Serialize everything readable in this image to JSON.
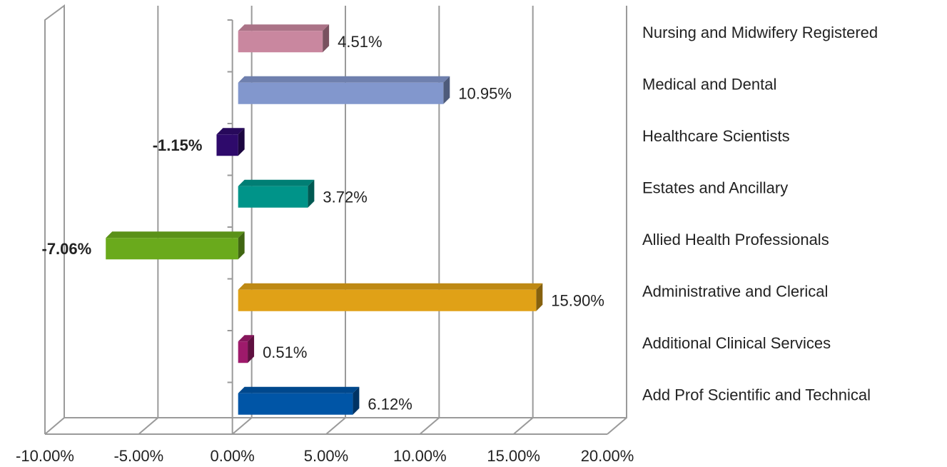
{
  "chart_data": {
    "type": "bar3d_horizontal",
    "categories": [
      "Nursing and Midwifery Registered",
      "Medical and Dental",
      "Healthcare Scientists",
      "Estates and Ancillary",
      "Allied Health Professionals",
      "Administrative and Clerical",
      "Additional Clinical Services",
      "Add Prof Scientific and Technical"
    ],
    "values": [
      4.51,
      10.95,
      -1.15,
      3.72,
      -7.06,
      15.9,
      0.51,
      6.12
    ],
    "value_labels": [
      "4.51%",
      "10.95%",
      "-1.15%",
      "3.72%",
      "-7.06%",
      "15.90%",
      "0.51%",
      "6.12%"
    ],
    "colors": [
      "#c9879f",
      "#8297cd",
      "#2e0a6b",
      "#009489",
      "#6aaa1c",
      "#e0a117",
      "#9e1a6b",
      "#0055a6"
    ],
    "xlim": [
      -10,
      20
    ],
    "xticks": [
      {
        "value": -10,
        "label": "-10.00%"
      },
      {
        "value": -5,
        "label": "-5.00%"
      },
      {
        "value": 0,
        "label": "0.00%"
      },
      {
        "value": 5,
        "label": "5.00%"
      },
      {
        "value": 10,
        "label": "10.00%"
      },
      {
        "value": 15,
        "label": "15.00%"
      },
      {
        "value": 20,
        "label": "20.00%"
      }
    ],
    "grid": true
  }
}
